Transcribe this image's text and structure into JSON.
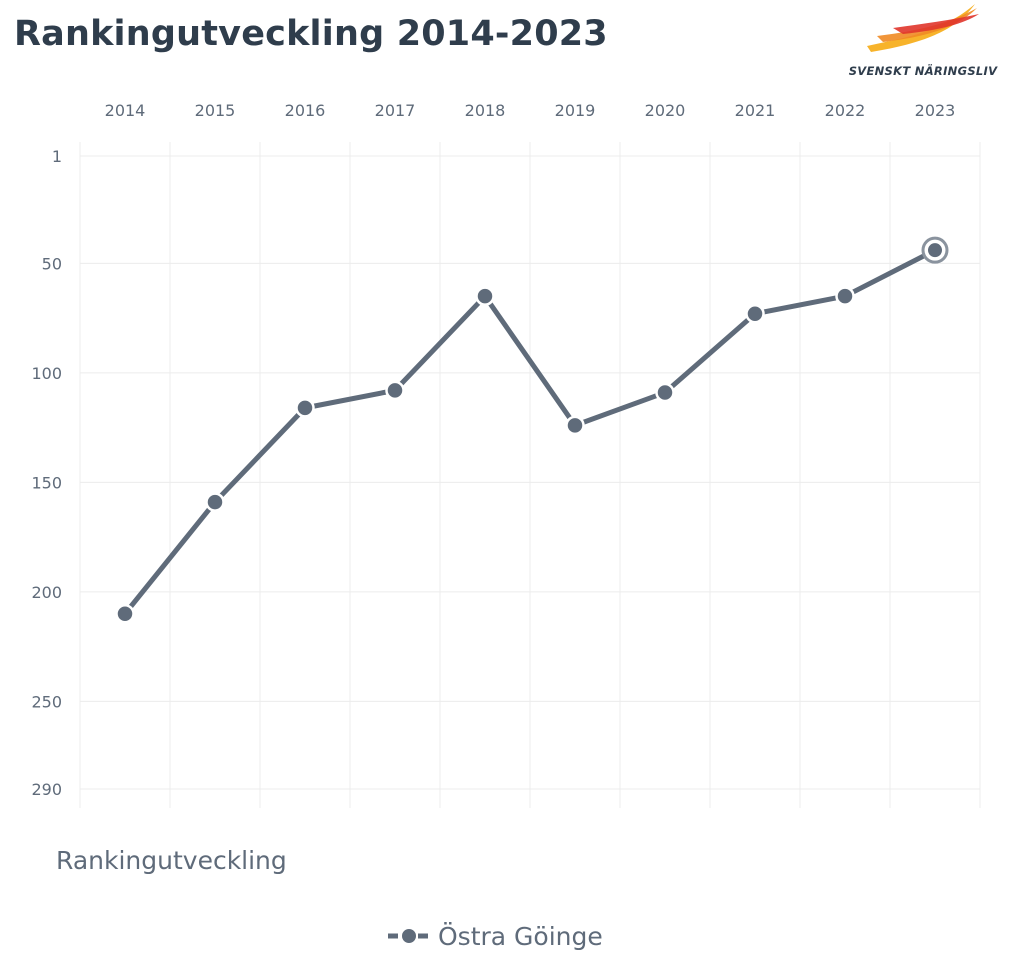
{
  "page": {
    "title": "Rankingutveckling 2014-2023",
    "caption": "Rankingutveckling"
  },
  "logo": {
    "text": "SVENSKT NÄRINGSLIV",
    "icon": "swoosh-logo-icon",
    "colors": [
      "#f7b32b",
      "#f08a24",
      "#e0352b"
    ]
  },
  "chart_data": {
    "type": "line",
    "title": "Rankingutveckling 2014-2023",
    "xlabel": "",
    "ylabel": "",
    "x": [
      "2014",
      "2015",
      "2016",
      "2017",
      "2018",
      "2019",
      "2020",
      "2021",
      "2022",
      "2023"
    ],
    "series": [
      {
        "name": "Östra Göinge",
        "values": [
          210,
          159,
          116,
          108,
          65,
          124,
          109,
          73,
          65,
          44
        ],
        "color": "#5f6b7a"
      }
    ],
    "y_ticks": [
      1,
      50,
      100,
      150,
      200,
      250,
      290
    ],
    "ylim": [
      1,
      290
    ],
    "y_reversed": true,
    "x_axis_position": "top",
    "grid": true,
    "legend": "bottom-center",
    "highlight_last_point": true
  }
}
